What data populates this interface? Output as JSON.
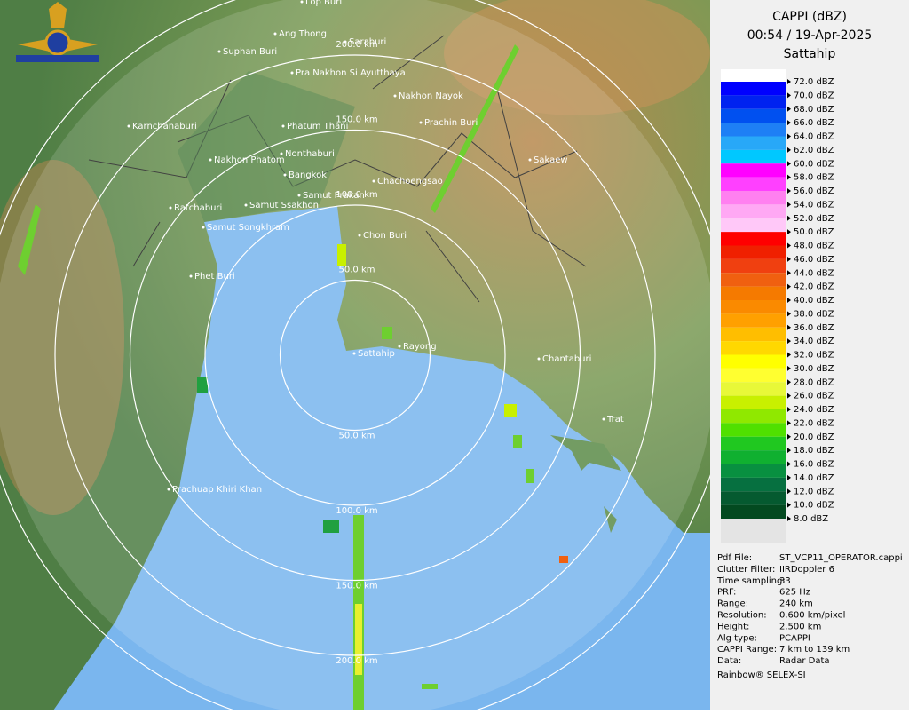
{
  "header": {
    "title": "CAPPI (dBZ)",
    "time": "00:54 / 19-Apr-2025",
    "site": "Sattahip"
  },
  "legend": [
    {
      "label": "72.0 dBZ",
      "color": "#ffffff"
    },
    {
      "label": "70.0 dBZ",
      "color": "#0000ff"
    },
    {
      "label": "68.0 dBZ",
      "color": "#0022f0"
    },
    {
      "label": "66.0 dBZ",
      "color": "#0050f0"
    },
    {
      "label": "64.0 dBZ",
      "color": "#1e7ff5"
    },
    {
      "label": "62.0 dBZ",
      "color": "#28a8f8"
    },
    {
      "label": "60.0 dBZ",
      "color": "#00c8ff"
    },
    {
      "label": "58.0 dBZ",
      "color": "#ff00ff"
    },
    {
      "label": "56.0 dBZ",
      "color": "#ff40ff"
    },
    {
      "label": "54.0 dBZ",
      "color": "#ff80f0"
    },
    {
      "label": "52.0 dBZ",
      "color": "#ffa8f4"
    },
    {
      "label": "50.0 dBZ",
      "color": "#ffc8f8"
    },
    {
      "label": "48.0 dBZ",
      "color": "#ff0000"
    },
    {
      "label": "46.0 dBZ",
      "color": "#f02000"
    },
    {
      "label": "44.0 dBZ",
      "color": "#f04010"
    },
    {
      "label": "42.0 dBZ",
      "color": "#f06010"
    },
    {
      "label": "40.0 dBZ",
      "color": "#f57a00"
    },
    {
      "label": "38.0 dBZ",
      "color": "#fa8a00"
    },
    {
      "label": "36.0 dBZ",
      "color": "#ffa000"
    },
    {
      "label": "34.0 dBZ",
      "color": "#ffbe00"
    },
    {
      "label": "32.0 dBZ",
      "color": "#ffd800"
    },
    {
      "label": "30.0 dBZ",
      "color": "#ffff00"
    },
    {
      "label": "28.0 dBZ",
      "color": "#ffff30"
    },
    {
      "label": "26.0 dBZ",
      "color": "#e8f838"
    },
    {
      "label": "24.0 dBZ",
      "color": "#c8f000"
    },
    {
      "label": "22.0 dBZ",
      "color": "#90e800"
    },
    {
      "label": "20.0 dBZ",
      "color": "#50e000"
    },
    {
      "label": "18.0 dBZ",
      "color": "#20c820"
    },
    {
      "label": "16.0 dBZ",
      "color": "#10b030"
    },
    {
      "label": "14.0 dBZ",
      "color": "#089040"
    },
    {
      "label": "12.0 dBZ",
      "color": "#067040"
    },
    {
      "label": "10.0 dBZ",
      "color": "#055a30"
    },
    {
      "label": "8.0 dBZ",
      "color": "#034a20"
    }
  ],
  "info": [
    [
      "Pdf File:",
      "ST_VCP11_OPERATOR.cappi"
    ],
    [
      "Clutter Filter:",
      "IIRDoppler 6"
    ],
    [
      "Time sampling:",
      "33"
    ],
    [
      "PRF:",
      "625 Hz"
    ],
    [
      "Range:",
      "240 km"
    ],
    [
      "Resolution:",
      "0.600 km/pixel"
    ],
    [
      "Height:",
      "2.500 km"
    ],
    [
      "Alg type:",
      "PCAPPI"
    ],
    [
      "CAPPI Range:",
      "7 km to 139 km"
    ],
    [
      "Data:",
      "Radar Data"
    ]
  ],
  "footer": "Rainbow® SELEX-SI",
  "range_rings": [
    "50.0 km",
    "100.0 km",
    "150.0 km",
    "200.0 km"
  ],
  "places": [
    "Lop Buri",
    "Ang Thong",
    "Saraburi",
    "Suphan Buri",
    "Pra Nakhon Si Ayutthaya",
    "Nakhon Nayok",
    "Karnchanaburi",
    "Phatum Thani",
    "Prachin Buri",
    "Nakhon Phatom",
    "Nonthaburi",
    "Sakaew",
    "Bangkok",
    "Chachoengsao",
    "Samut Prakan",
    "Ratchaburi",
    "Samut Ssakhon",
    "Samut Songkhram",
    "Chon Buri",
    "Phet Buri",
    "Rayong",
    "Sattahip",
    "Chantaburi",
    "Trat",
    "Prachuap Khiri Khan"
  ]
}
